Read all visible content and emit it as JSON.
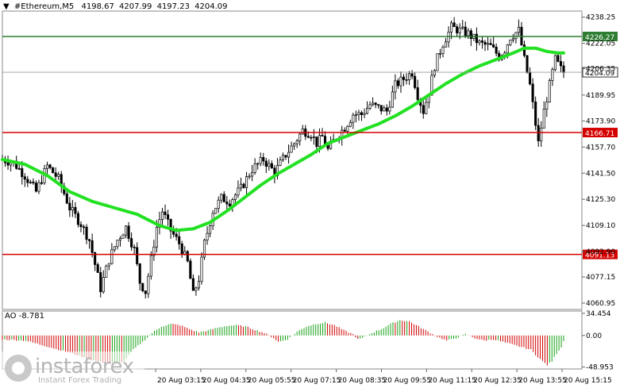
{
  "header": {
    "arrow": "▼",
    "symbol": "#Ethereum,M5",
    "open": "4198.67",
    "high": "4207.99",
    "low": "4197.23",
    "close": "4204.09"
  },
  "ao_header": {
    "label": "AO",
    "value": "-8.781"
  },
  "logo": {
    "name": "instaforex",
    "tagline": "Instant Forex Trading"
  },
  "colors": {
    "up": "#000000",
    "ma": "#22e022",
    "level_green": "#2e7d32",
    "level_red": "#d50000",
    "ao_up": "#14a014",
    "ao_down": "#d00000",
    "grid": "#b0b0b0",
    "price_tag": "#404040"
  },
  "chart_data": [
    {
      "type": "candlestick",
      "title": "#Ethereum,M5",
      "y_ticks": [
        "4238.25",
        "4222.05",
        "4206.35",
        "4189.95",
        "4173.90",
        "4157.70",
        "4141.50",
        "4125.30",
        "4109.10",
        "4092.90",
        "4077.15",
        "4060.95"
      ],
      "y_range": [
        4057,
        4242
      ],
      "x_ticks": [
        "20 Aug 03:15",
        "20 Aug 04:35",
        "20 Aug 05:55",
        "20 Aug 07:15",
        "20 Aug 08:35",
        "20 Aug 09:55",
        "20 Aug 11:15",
        "20 Aug 12:35",
        "20 Aug 13:55",
        "20 Aug 15:15"
      ],
      "levels": [
        {
          "value": 4226.27,
          "label": "4226.27",
          "color": "level_green"
        },
        {
          "value": 4166.71,
          "label": "4166.71",
          "color": "level_red"
        },
        {
          "value": 4091.13,
          "label": "4091.13",
          "color": "level_red"
        }
      ],
      "current_price": {
        "value": 4204.09,
        "label": "4204.09"
      },
      "close_path": [
        [
          0,
          4150
        ],
        [
          4,
          4148
        ],
        [
          8,
          4140
        ],
        [
          12,
          4130
        ],
        [
          16,
          4146
        ],
        [
          20,
          4138
        ],
        [
          24,
          4120
        ],
        [
          28,
          4110
        ],
        [
          31,
          4100
        ],
        [
          33,
          4085
        ],
        [
          35,
          4070
        ],
        [
          38,
          4088
        ],
        [
          41,
          4100
        ],
        [
          44,
          4108
        ],
        [
          47,
          4094
        ],
        [
          49,
          4074
        ],
        [
          51,
          4068
        ],
        [
          53,
          4088
        ],
        [
          55,
          4108
        ],
        [
          57,
          4118
        ],
        [
          60,
          4106
        ],
        [
          63,
          4098
        ],
        [
          66,
          4086
        ],
        [
          68,
          4066
        ],
        [
          70,
          4076
        ],
        [
          72,
          4098
        ],
        [
          75,
          4118
        ],
        [
          78,
          4126
        ],
        [
          81,
          4124
        ],
        [
          85,
          4132
        ],
        [
          89,
          4144
        ],
        [
          93,
          4150
        ],
        [
          97,
          4142
        ],
        [
          101,
          4153
        ],
        [
          104,
          4160
        ],
        [
          107,
          4168
        ],
        [
          110,
          4166
        ],
        [
          112,
          4160
        ],
        [
          114,
          4164
        ],
        [
          116,
          4156
        ],
        [
          119,
          4164
        ],
        [
          122,
          4170
        ],
        [
          125,
          4178
        ],
        [
          128,
          4178
        ],
        [
          131,
          4184
        ],
        [
          134,
          4182
        ],
        [
          137,
          4180
        ],
        [
          140,
          4196
        ],
        [
          143,
          4200
        ],
        [
          146,
          4204
        ],
        [
          148,
          4190
        ],
        [
          150,
          4180
        ],
        [
          152,
          4192
        ],
        [
          154,
          4208
        ],
        [
          157,
          4222
        ],
        [
          160,
          4232
        ],
        [
          163,
          4230
        ],
        [
          166,
          4228
        ],
        [
          170,
          4222
        ],
        [
          174,
          4220
        ],
        [
          177,
          4214
        ],
        [
          179,
          4218
        ],
        [
          181,
          4226
        ],
        [
          184,
          4230
        ],
        [
          186,
          4212
        ],
        [
          188,
          4196
        ],
        [
          190,
          4172
        ],
        [
          191,
          4160
        ],
        [
          193,
          4180
        ],
        [
          195,
          4196
        ],
        [
          197,
          4212
        ],
        [
          199,
          4206
        ],
        [
          200,
          4204.09
        ]
      ],
      "ma_path": [
        [
          0,
          4150
        ],
        [
          8,
          4147
        ],
        [
          16,
          4140
        ],
        [
          24,
          4130
        ],
        [
          32,
          4124
        ],
        [
          40,
          4120
        ],
        [
          48,
          4116
        ],
        [
          56,
          4109
        ],
        [
          62,
          4106
        ],
        [
          68,
          4107
        ],
        [
          74,
          4111
        ],
        [
          80,
          4118
        ],
        [
          86,
          4126
        ],
        [
          92,
          4134
        ],
        [
          98,
          4141
        ],
        [
          104,
          4147
        ],
        [
          110,
          4153
        ],
        [
          116,
          4160
        ],
        [
          122,
          4164
        ],
        [
          128,
          4168
        ],
        [
          134,
          4172
        ],
        [
          140,
          4177
        ],
        [
          146,
          4183
        ],
        [
          152,
          4190
        ],
        [
          158,
          4197
        ],
        [
          164,
          4203
        ],
        [
          170,
          4208
        ],
        [
          176,
          4212
        ],
        [
          182,
          4216
        ],
        [
          186,
          4219
        ],
        [
          190,
          4219
        ],
        [
          194,
          4217
        ],
        [
          198,
          4216
        ],
        [
          200,
          4216
        ]
      ]
    },
    {
      "type": "bar",
      "title": "AO",
      "y_ticks": [
        "34.454",
        "0.00",
        "-48.953"
      ],
      "y_range": [
        -52,
        38
      ],
      "value_path": [
        [
          0,
          -6
        ],
        [
          10,
          -8
        ],
        [
          20,
          -18
        ],
        [
          30,
          -28
        ],
        [
          38,
          -38
        ],
        [
          46,
          -44
        ],
        [
          52,
          -40
        ],
        [
          56,
          -22
        ],
        [
          60,
          -10
        ],
        [
          64,
          4
        ],
        [
          68,
          14
        ],
        [
          72,
          18
        ],
        [
          76,
          16
        ],
        [
          80,
          10
        ],
        [
          84,
          5
        ],
        [
          88,
          8
        ],
        [
          92,
          12
        ],
        [
          96,
          15
        ],
        [
          100,
          16
        ],
        [
          104,
          14
        ],
        [
          108,
          9
        ],
        [
          112,
          4
        ],
        [
          116,
          -4
        ],
        [
          118,
          -10
        ],
        [
          122,
          -6
        ],
        [
          126,
          6
        ],
        [
          130,
          14
        ],
        [
          134,
          18
        ],
        [
          138,
          20
        ],
        [
          142,
          16
        ],
        [
          146,
          8
        ],
        [
          150,
          2
        ],
        [
          152,
          -6
        ],
        [
          154,
          -4
        ],
        [
          158,
          4
        ],
        [
          162,
          10
        ],
        [
          166,
          18
        ],
        [
          170,
          24
        ],
        [
          174,
          22
        ],
        [
          178,
          14
        ],
        [
          182,
          6
        ],
        [
          186,
          -2
        ],
        [
          190,
          -8
        ],
        [
          194,
          -4
        ],
        [
          198,
          2
        ],
        [
          202,
          -4
        ],
        [
          206,
          -8
        ],
        [
          210,
          -6
        ],
        [
          214,
          -10
        ],
        [
          218,
          -14
        ],
        [
          222,
          -18
        ],
        [
          226,
          -22
        ],
        [
          228,
          -30
        ],
        [
          231,
          -40
        ],
        [
          233,
          -46
        ],
        [
          235,
          -40
        ],
        [
          237,
          -28
        ],
        [
          239,
          -18
        ],
        [
          240,
          -8.781
        ]
      ],
      "current": -8.781
    }
  ]
}
